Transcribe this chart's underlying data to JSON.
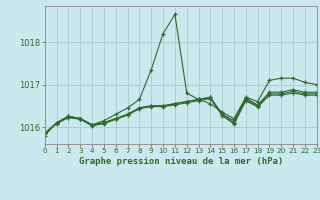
{
  "title": "Graphe pression niveau de la mer (hPa)",
  "bg_color": "#cce8ef",
  "grid_color": "#aacccc",
  "line_color": "#2d6a2d",
  "x_min": 0,
  "x_max": 23,
  "y_min": 1015.6,
  "y_max": 1018.85,
  "yticks": [
    1016,
    1017,
    1018
  ],
  "xticks": [
    0,
    1,
    2,
    3,
    4,
    5,
    6,
    7,
    8,
    9,
    10,
    11,
    12,
    13,
    14,
    15,
    16,
    17,
    18,
    19,
    20,
    21,
    22,
    23
  ],
  "y_main": [
    1015.8,
    1016.1,
    1016.25,
    1016.2,
    1016.05,
    1016.15,
    1016.3,
    1016.45,
    1016.65,
    1017.35,
    1018.2,
    1018.65,
    1016.8,
    1016.65,
    1016.55,
    1016.35,
    1016.2,
    1016.7,
    1016.6,
    1017.1,
    1017.15,
    1017.15,
    1017.05,
    1017.0
  ],
  "y_s2": [
    1015.85,
    1016.1,
    1016.25,
    1016.2,
    1016.05,
    1016.1,
    1016.2,
    1016.3,
    1016.45,
    1016.5,
    1016.5,
    1016.55,
    1016.6,
    1016.65,
    1016.7,
    1016.3,
    1016.15,
    1016.68,
    1016.52,
    1016.82,
    1016.82,
    1016.88,
    1016.82,
    1016.82
  ],
  "y_s3": [
    1015.85,
    1016.1,
    1016.25,
    1016.2,
    1016.05,
    1016.1,
    1016.2,
    1016.3,
    1016.45,
    1016.5,
    1016.5,
    1016.55,
    1016.6,
    1016.65,
    1016.7,
    1016.3,
    1016.1,
    1016.65,
    1016.5,
    1016.78,
    1016.78,
    1016.84,
    1016.78,
    1016.78
  ],
  "y_s4": [
    1015.85,
    1016.08,
    1016.22,
    1016.18,
    1016.03,
    1016.08,
    1016.18,
    1016.28,
    1016.43,
    1016.48,
    1016.48,
    1016.52,
    1016.57,
    1016.62,
    1016.67,
    1016.27,
    1016.07,
    1016.62,
    1016.47,
    1016.75,
    1016.75,
    1016.8,
    1016.75,
    1016.75
  ]
}
